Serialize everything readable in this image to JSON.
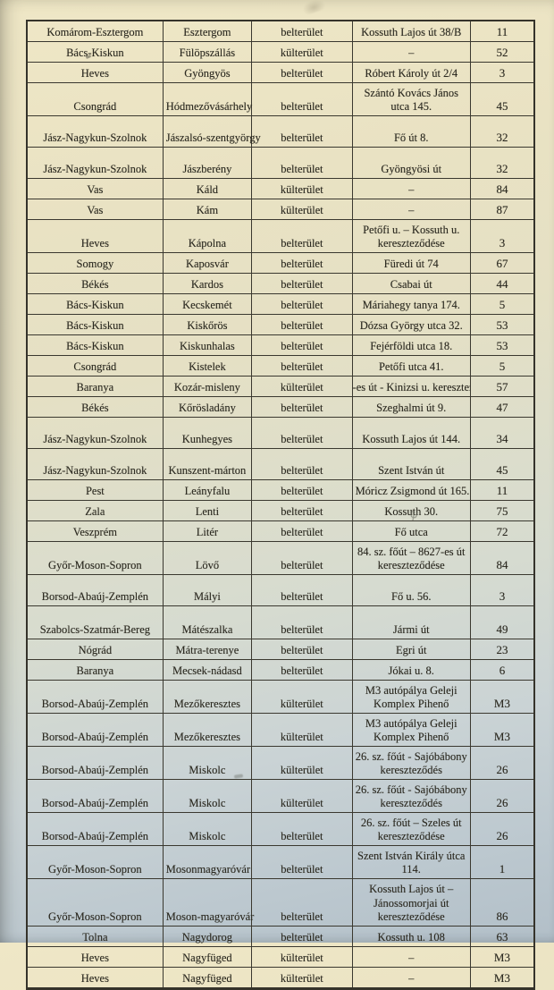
{
  "table": {
    "rows": [
      {
        "county": "Komárom-Esztergom",
        "settlement": "Esztergom",
        "area": "belterület",
        "address": "Kossuth Lajos út 38/B",
        "road": "11",
        "lines": 1
      },
      {
        "county": "Bács-Kiskun",
        "settlement": "Fülöpszállás",
        "area": "külterület",
        "address": "–",
        "road": "52",
        "lines": 1
      },
      {
        "county": "Heves",
        "settlement": "Gyöngyös",
        "area": "belterület",
        "address": "Róbert Károly út 2/4",
        "road": "3",
        "lines": 1
      },
      {
        "county": "Csongrád",
        "settlement": "Hódmezővásárhely",
        "area": "belterület",
        "address": "Szántó Kovács János utca 145.",
        "road": "45",
        "lines": 2
      },
      {
        "county": "Jász-Nagykun-Szolnok",
        "settlement": "Jászalsó-szentgyörgy",
        "area": "belterület",
        "address": "Fő út 8.",
        "road": "32",
        "lines": 1,
        "tall": true
      },
      {
        "county": "Jász-Nagykun-Szolnok",
        "settlement": "Jászberény",
        "area": "belterület",
        "address": "Gyöngyösi út",
        "road": "32",
        "lines": 1,
        "tall": true
      },
      {
        "county": "Vas",
        "settlement": "Káld",
        "area": "külterület",
        "address": "–",
        "road": "84",
        "lines": 1
      },
      {
        "county": "Vas",
        "settlement": "Kám",
        "area": "külterület",
        "address": "–",
        "road": "87",
        "lines": 1
      },
      {
        "county": "Heves",
        "settlement": "Kápolna",
        "area": "belterület",
        "address": "Petőfi u. – Kossuth u. kereszteződése",
        "road": "3",
        "lines": 2
      },
      {
        "county": "Somogy",
        "settlement": "Kaposvár",
        "area": "belterület",
        "address": "Füredi út 74",
        "road": "67",
        "lines": 1
      },
      {
        "county": "Békés",
        "settlement": "Kardos",
        "area": "belterület",
        "address": "Csabai út",
        "road": "44",
        "lines": 1
      },
      {
        "county": "Bács-Kiskun",
        "settlement": "Kecskemét",
        "area": "belterület",
        "address": "Máriahegy tanya 174.",
        "road": "5",
        "lines": 1
      },
      {
        "county": "Bács-Kiskun",
        "settlement": "Kiskőrös",
        "area": "belterület",
        "address": "Dózsa György utca 32.",
        "road": "53",
        "lines": 1
      },
      {
        "county": "Bács-Kiskun",
        "settlement": "Kiskunhalas",
        "area": "belterület",
        "address": "Fejérföldi utca 18.",
        "road": "53",
        "lines": 1
      },
      {
        "county": "Csongrád",
        "settlement": "Kistelek",
        "area": "belterület",
        "address": "Petőfi utca 41.",
        "road": "5",
        "lines": 1
      },
      {
        "county": "Baranya",
        "settlement": "Kozár-misleny",
        "area": "külterület",
        "address": "-es út - Kinizsi u. kereszteződé",
        "road": "57",
        "lines": 1,
        "clip": true
      },
      {
        "county": "Békés",
        "settlement": "Kőrösladány",
        "area": "belterület",
        "address": "Szeghalmi út 9.",
        "road": "47",
        "lines": 1
      },
      {
        "county": "Jász-Nagykun-Szolnok",
        "settlement": "Kunhegyes",
        "area": "belterület",
        "address": "Kossuth Lajos út 144.",
        "road": "34",
        "lines": 1,
        "tall": true
      },
      {
        "county": "Jász-Nagykun-Szolnok",
        "settlement": "Kunszent-márton",
        "area": "belterület",
        "address": "Szent István út",
        "road": "45",
        "lines": 1,
        "tall": true
      },
      {
        "county": "Pest",
        "settlement": "Leányfalu",
        "area": "belterület",
        "address": "Móricz Zsigmond út 165.",
        "road": "11",
        "lines": 1
      },
      {
        "county": "Zala",
        "settlement": "Lenti",
        "area": "belterület",
        "address": "Kossuth 30.",
        "road": "75",
        "lines": 1
      },
      {
        "county": "Veszprém",
        "settlement": "Litér",
        "area": "belterület",
        "address": "Fő utca",
        "road": "72",
        "lines": 1
      },
      {
        "county": "Győr-Moson-Sopron",
        "settlement": "Lövő",
        "area": "belterület",
        "address": "84. sz. főút – 8627-es út kereszteződése",
        "road": "84",
        "lines": 2
      },
      {
        "county": "Borsod-Abaúj-Zemplén",
        "settlement": "Mályi",
        "area": "belterület",
        "address": "Fő u. 56.",
        "road": "3",
        "lines": 1,
        "tall": true
      },
      {
        "county": "Szabolcs-Szatmár-Bereg",
        "settlement": "Mátészalka",
        "area": "belterület",
        "address": "Jármi út",
        "road": "49",
        "lines": 2
      },
      {
        "county": "Nógrád",
        "settlement": "Mátra-terenye",
        "area": "belterület",
        "address": "Egri út",
        "road": "23",
        "lines": 1
      },
      {
        "county": "Baranya",
        "settlement": "Mecsek-nádasd",
        "area": "belterület",
        "address": "Jókai u. 8.",
        "road": "6",
        "lines": 1
      },
      {
        "county": "Borsod-Abaúj-Zemplén",
        "settlement": "Mezőkeresztes",
        "area": "külterület",
        "address": "M3 autópálya Geleji Komplex Pihenő",
        "road": "M3",
        "lines": 2
      },
      {
        "county": "Borsod-Abaúj-Zemplén",
        "settlement": "Mezőkeresztes",
        "area": "külterület",
        "address": "M3 autópálya Geleji Komplex Pihenő",
        "road": "M3",
        "lines": 2
      },
      {
        "county": "Borsod-Abaúj-Zemplén",
        "settlement": "Miskolc",
        "area": "külterület",
        "address": "26. sz. főút - Sajóbábony kereszteződés",
        "road": "26",
        "lines": 2
      },
      {
        "county": "Borsod-Abaúj-Zemplén",
        "settlement": "Miskolc",
        "area": "külterület",
        "address": "26. sz. főút - Sajóbábony kereszteződés",
        "road": "26",
        "lines": 2
      },
      {
        "county": "Borsod-Abaúj-Zemplén",
        "settlement": "Miskolc",
        "area": "belterület",
        "address": "26. sz. főút – Szeles út kereszteződése",
        "road": "26",
        "lines": 2
      },
      {
        "county": "Győr-Moson-Sopron",
        "settlement": "Mosonmagyaróvár",
        "area": "belterület",
        "address": "Szent István Király útca 114.",
        "road": "1",
        "lines": 2
      },
      {
        "county": "Győr-Moson-Sopron",
        "settlement": "Moson-magyaróvár",
        "area": "belterület",
        "address": "Kossuth Lajos út – Jánossomorjai út kereszteződése",
        "road": "86",
        "lines": 3
      },
      {
        "county": "Tolna",
        "settlement": "Nagydorog",
        "area": "belterület",
        "address": "Kossuth u. 108",
        "road": "63",
        "lines": 1
      },
      {
        "county": "Heves",
        "settlement": "Nagyfüged",
        "area": "külterület",
        "address": "–",
        "road": "M3",
        "lines": 1
      },
      {
        "county": "Heves",
        "settlement": "Nagyfüged",
        "area": "külterület",
        "address": "–",
        "road": "M3",
        "lines": 1
      }
    ]
  },
  "colors": {
    "paper_top": "#e9e2c3",
    "paper_bottom": "#b2bfc8",
    "table_border": "#35332b",
    "ink": "#2b2920"
  },
  "artifacts": {
    "pen_squiggle_glyph": "ψ"
  }
}
